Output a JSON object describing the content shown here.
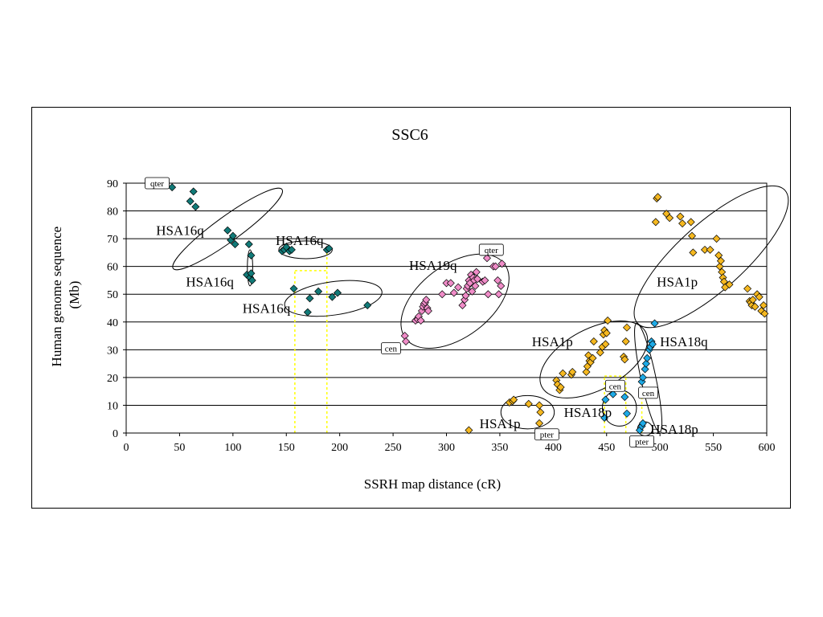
{
  "chart_data": {
    "type": "scatter",
    "title": "SSC6",
    "xlabel": "SSRH map distance (cR)",
    "ylabel_lines": [
      "Human genome sequence",
      "(Mb)"
    ],
    "xlim": [
      0,
      600
    ],
    "ylim": [
      0,
      90
    ],
    "xticks": [
      0,
      50,
      100,
      150,
      200,
      250,
      300,
      350,
      400,
      450,
      500,
      550,
      600
    ],
    "yticks": [
      0,
      10,
      20,
      30,
      40,
      50,
      60,
      70,
      80,
      90
    ],
    "grid": "horizontal",
    "legend": "none",
    "colors": {
      "teal": "#117a78",
      "pink": "#f08cc8",
      "orange": "#f5b820",
      "cyan": "#1eaae6",
      "guide": "#ffff00"
    },
    "series": [
      {
        "color": "teal",
        "points": [
          [
            43,
            88.5
          ],
          [
            60,
            83.5
          ],
          [
            63,
            87
          ],
          [
            65,
            81.5
          ],
          [
            95,
            73
          ],
          [
            98,
            69.5
          ],
          [
            100,
            71
          ],
          [
            102,
            68
          ],
          [
            115,
            68
          ],
          [
            117,
            64
          ],
          [
            113,
            57
          ],
          [
            116,
            56
          ],
          [
            118,
            55
          ],
          [
            117,
            57.5
          ],
          [
            146,
            65.5
          ],
          [
            148,
            66
          ],
          [
            150,
            67
          ],
          [
            153,
            65.5
          ],
          [
            155,
            66
          ],
          [
            188,
            66
          ],
          [
            190,
            66.5
          ],
          [
            157,
            52
          ],
          [
            170,
            43.5
          ],
          [
            172,
            48.5
          ],
          [
            180,
            51
          ],
          [
            193,
            49
          ],
          [
            198,
            50.5
          ],
          [
            226,
            46
          ]
        ]
      },
      {
        "color": "pink",
        "points": [
          [
            261,
            35
          ],
          [
            262,
            33
          ],
          [
            271,
            40.5
          ],
          [
            273,
            41
          ],
          [
            274,
            42
          ],
          [
            276,
            40.5
          ],
          [
            277,
            44
          ],
          [
            278,
            45.5
          ],
          [
            279,
            46.5
          ],
          [
            280,
            47
          ],
          [
            281,
            48
          ],
          [
            282,
            45
          ],
          [
            283,
            44
          ],
          [
            296,
            50
          ],
          [
            300,
            54
          ],
          [
            304,
            54
          ],
          [
            307,
            50.5
          ],
          [
            311,
            52.5
          ],
          [
            315,
            46
          ],
          [
            317,
            48
          ],
          [
            318,
            49.5
          ],
          [
            319,
            52
          ],
          [
            320,
            53
          ],
          [
            321,
            55
          ],
          [
            322,
            54
          ],
          [
            323,
            57
          ],
          [
            324,
            51
          ],
          [
            325,
            56
          ],
          [
            326,
            55
          ],
          [
            327,
            53
          ],
          [
            328,
            58
          ],
          [
            329,
            55.5
          ],
          [
            334,
            54.5
          ],
          [
            336,
            55
          ],
          [
            338,
            63
          ],
          [
            339,
            50
          ],
          [
            344,
            60
          ],
          [
            346,
            60
          ],
          [
            348,
            55
          ],
          [
            349,
            50
          ],
          [
            351,
            53
          ],
          [
            352,
            61
          ]
        ]
      },
      {
        "color": "orange",
        "points": [
          [
            321,
            1
          ],
          [
            359,
            11
          ],
          [
            362,
            11.5
          ],
          [
            363,
            12
          ],
          [
            377,
            10.5
          ],
          [
            387,
            10
          ],
          [
            388,
            7.5
          ],
          [
            387,
            3.5
          ],
          [
            403,
            19
          ],
          [
            404,
            17.5
          ],
          [
            406,
            15.5
          ],
          [
            407,
            16.5
          ],
          [
            409,
            21.5
          ],
          [
            417,
            21
          ],
          [
            418,
            22
          ],
          [
            431,
            22
          ],
          [
            432,
            24
          ],
          [
            433,
            28
          ],
          [
            434,
            26
          ],
          [
            435,
            25.5
          ],
          [
            437,
            27
          ],
          [
            438,
            33
          ],
          [
            444,
            29
          ],
          [
            446,
            31
          ],
          [
            447,
            35.5
          ],
          [
            448,
            37
          ],
          [
            449,
            32
          ],
          [
            450,
            36
          ],
          [
            451,
            40.5
          ],
          [
            466,
            27.5
          ],
          [
            467,
            26.5
          ],
          [
            468,
            33
          ],
          [
            469,
            38
          ],
          [
            496,
            76
          ],
          [
            497,
            84.5
          ],
          [
            498,
            85
          ],
          [
            506,
            79
          ],
          [
            509,
            77.5
          ],
          [
            519,
            78
          ],
          [
            521,
            75.5
          ],
          [
            529,
            76
          ],
          [
            530,
            71
          ],
          [
            531,
            65
          ],
          [
            542,
            66
          ],
          [
            547,
            66
          ],
          [
            553,
            70
          ],
          [
            555,
            64
          ],
          [
            556,
            60
          ],
          [
            557,
            62
          ],
          [
            558,
            58
          ],
          [
            559,
            56
          ],
          [
            560,
            54.5
          ],
          [
            561,
            52.5
          ],
          [
            565,
            53.5
          ],
          [
            582,
            52
          ],
          [
            584,
            47.5
          ],
          [
            585,
            47
          ],
          [
            586,
            46
          ],
          [
            587,
            48
          ],
          [
            589,
            45.5
          ],
          [
            591,
            50
          ],
          [
            593,
            49
          ],
          [
            595,
            44
          ],
          [
            597,
            46
          ],
          [
            598,
            43
          ]
        ]
      },
      {
        "color": "cyan",
        "points": [
          [
            448,
            5.5
          ],
          [
            449,
            12
          ],
          [
            456,
            14
          ],
          [
            467,
            13
          ],
          [
            469,
            7
          ],
          [
            481,
            1
          ],
          [
            483,
            2.5
          ],
          [
            484,
            3.5
          ],
          [
            483,
            18.5
          ],
          [
            484,
            20
          ],
          [
            486,
            23
          ],
          [
            487,
            25
          ],
          [
            488,
            27
          ],
          [
            490,
            30
          ],
          [
            491,
            31
          ],
          [
            492,
            33
          ],
          [
            493,
            32
          ],
          [
            495,
            39.5
          ]
        ]
      }
    ],
    "ellipses": [
      {
        "cx": 95,
        "cy": 73.5,
        "rx": 63,
        "ry": 4.5,
        "angle_deg": 36
      },
      {
        "cx": 116,
        "cy": 59.5,
        "rx": 2.5,
        "ry": 6.5,
        "angle_deg": 0
      },
      {
        "cx": 168,
        "cy": 66,
        "rx": 25,
        "ry": 3.2,
        "angle_deg": 0
      },
      {
        "cx": 194,
        "cy": 48.5,
        "rx": 46,
        "ry": 6,
        "angle_deg": 8
      },
      {
        "cx": 308,
        "cy": 47.5,
        "rx": 58,
        "ry": 13,
        "angle_deg": 37
      },
      {
        "cx": 376,
        "cy": 7.5,
        "rx": 25,
        "ry": 6,
        "angle_deg": 0
      },
      {
        "cx": 438,
        "cy": 26.5,
        "rx": 55,
        "ry": 11,
        "angle_deg": 28
      },
      {
        "cx": 462,
        "cy": 9,
        "rx": 16,
        "ry": 6.5,
        "angle_deg": 0
      },
      {
        "cx": 489,
        "cy": 20,
        "rx": 7,
        "ry": 20,
        "angle_deg": 12
      },
      {
        "cx": 486,
        "cy": 1.5,
        "rx": 7,
        "ry": 2.5,
        "angle_deg": 0
      },
      {
        "cx": 548,
        "cy": 63.5,
        "rx": 93,
        "ry": 12,
        "angle_deg": 42
      }
    ],
    "guides": [
      {
        "x1": 158,
        "y1": 0,
        "x2": 158,
        "y2": 58.5
      },
      {
        "x1": 188,
        "y1": 0,
        "x2": 188,
        "y2": 65
      },
      {
        "x1": 158,
        "y1": 58.5,
        "x2": 188,
        "y2": 58.5
      },
      {
        "x1": 448,
        "y1": 0,
        "x2": 448,
        "y2": 20.5
      },
      {
        "x1": 468,
        "y1": 0,
        "x2": 468,
        "y2": 20.5
      },
      {
        "x1": 448,
        "y1": 20.5,
        "x2": 468,
        "y2": 20.5
      },
      {
        "x1": 483,
        "y1": 0,
        "x2": 483,
        "y2": 20
      }
    ],
    "region_labels": [
      {
        "text": "HSA16q",
        "x": 28,
        "y": 73
      },
      {
        "text": "HSA16q",
        "x": 140,
        "y": 69.5
      },
      {
        "text": "HSA16q",
        "x": 56,
        "y": 54.5
      },
      {
        "text": "HSA16q",
        "x": 109,
        "y": 45
      },
      {
        "text": "HSA19q",
        "x": 265,
        "y": 60.5
      },
      {
        "text": "HSA1p",
        "x": 497,
        "y": 54.5
      },
      {
        "text": "HSA1p",
        "x": 380,
        "y": 33
      },
      {
        "text": "HSA18q",
        "x": 500,
        "y": 33
      },
      {
        "text": "HSA18p",
        "x": 410,
        "y": 7.5
      },
      {
        "text": "HSA1p",
        "x": 331,
        "y": 3.5
      },
      {
        "text": "HSA18p",
        "x": 491,
        "y": 1.5
      }
    ],
    "marker_labels": [
      {
        "text": "qter",
        "x": 29,
        "y": 90
      },
      {
        "text": "qter",
        "x": 342,
        "y": 66
      },
      {
        "text": "cen",
        "x": 248,
        "y": 30.5
      },
      {
        "text": "cen",
        "x": 458,
        "y": 17
      },
      {
        "text": "cen",
        "x": 489,
        "y": 14.5
      },
      {
        "text": "pter",
        "x": 394,
        "y": -0.5
      },
      {
        "text": "pter",
        "x": 483,
        "y": -3
      }
    ]
  }
}
